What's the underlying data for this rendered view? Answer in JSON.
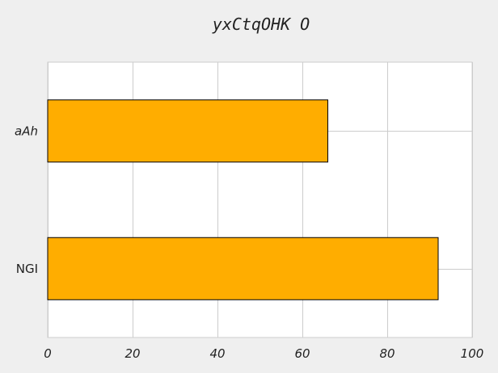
{
  "chart_data": {
    "type": "bar",
    "orientation": "horizontal",
    "title": "yxCtqOHK O",
    "categories": [
      "aAh",
      "NGI"
    ],
    "values": [
      66,
      92
    ],
    "xlim": [
      0,
      100
    ],
    "x_ticks": [
      "0",
      "20",
      "40",
      "60",
      "80",
      "100"
    ],
    "grid": true,
    "legend": "none",
    "colors": {
      "bar": "#ffad00",
      "bar_edge": "#000000",
      "plot_background": "#ffffff",
      "page_background": "#efefef",
      "grid": "#cccccc"
    }
  }
}
